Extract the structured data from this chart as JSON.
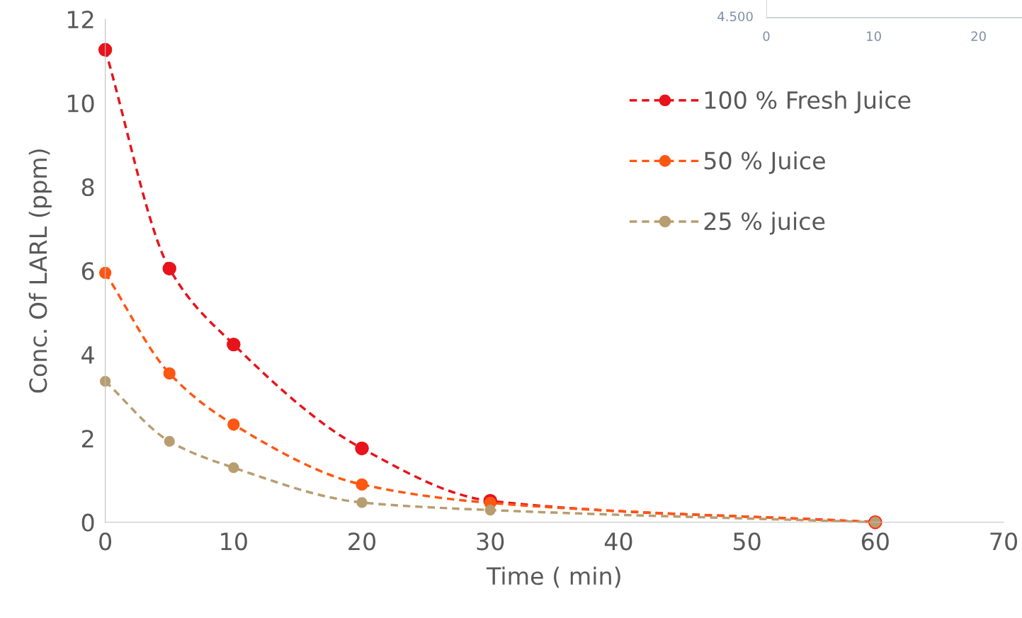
{
  "chart_data": [
    {
      "type": "line",
      "xlabel": "Time ( min)",
      "ylabel": "Conc. Of LARL (ppm)",
      "x": [
        0,
        5,
        10,
        20,
        30,
        60
      ],
      "series": [
        {
          "name": "100 % Fresh Juice",
          "color": "#e8131b",
          "values": [
            11.27,
            6.05,
            4.24,
            1.76,
            0.51,
            0
          ]
        },
        {
          "name": "50 % Juice",
          "color": "#fe5713",
          "values": [
            5.95,
            3.55,
            2.33,
            0.9,
            0.46,
            0
          ]
        },
        {
          "name": "25 % juice",
          "color": "#b89d70",
          "values": [
            3.36,
            1.93,
            1.3,
            0.47,
            0.29,
            0
          ]
        }
      ],
      "xlim": [
        0,
        70
      ],
      "xticks": [
        0,
        10,
        20,
        30,
        40,
        50,
        60,
        70
      ],
      "ylim": [
        0,
        12
      ],
      "yticks": [
        0,
        2,
        4,
        6,
        8,
        10,
        12
      ],
      "grid": false,
      "legend": "top right",
      "marker": "circle",
      "line_style": "dashed"
    },
    {
      "type": "other",
      "annotations": [
        "4.500",
        "0",
        "10",
        "20"
      ]
    }
  ]
}
